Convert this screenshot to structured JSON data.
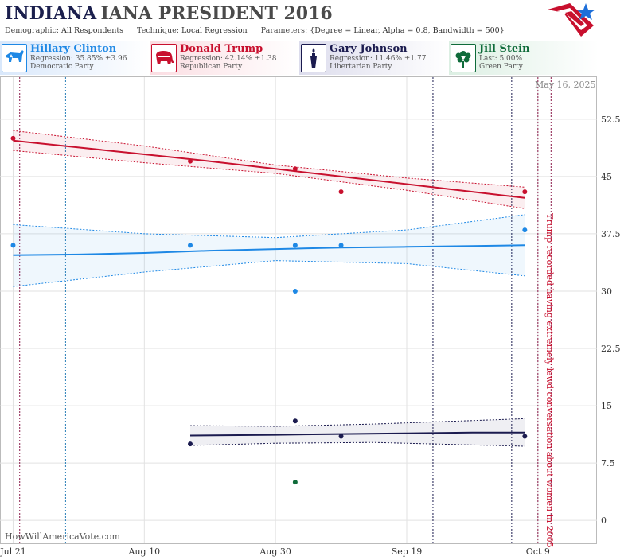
{
  "header": {
    "title_main": "INDIANA",
    "title_rest": "IANA PRESIDENT 2016",
    "demographic_label": "Demographic:",
    "demographic_value": "All Respondents",
    "technique_label": "Technique:",
    "technique_value": "Local Regression",
    "parameters_label": "Parameters:",
    "parameters_value": "{Degree = Linear, Alpha = 0.8, Bandwidth = 500}",
    "logo_icon": "star-flag-logo-icon"
  },
  "candidates": [
    {
      "name": "Hillary Clinton",
      "stat": "Regression: 35.85% ±3.96",
      "party": "Democratic Party",
      "color": "#1e88e5",
      "icon": "donkey-icon"
    },
    {
      "name": "Donald Trump",
      "stat": "Regression: 42.14% ±1.38",
      "party": "Republican Party",
      "color": "#c8102e",
      "icon": "elephant-icon"
    },
    {
      "name": "Gary Johnson",
      "stat": "Regression: 11.46% ±1.77",
      "party": "Libertarian Party",
      "color": "#1b1b4f",
      "icon": "torch-icon"
    },
    {
      "name": "Jill Stein",
      "stat": "Last: 5.00%",
      "party": "Green Party",
      "color": "#0f6b3a",
      "icon": "flower-icon"
    }
  ],
  "watermark": "HowWillAmericaVote.com",
  "date_stamp": "May 16, 2025",
  "chart_data": {
    "type": "scatter",
    "x_ticks": [
      "Jul 21",
      "Aug 10",
      "Aug 30",
      "Sep 19",
      "Oct 9"
    ],
    "x_tick_days": [
      0,
      20,
      40,
      60,
      80
    ],
    "y_ticks": [
      "0",
      "7.5",
      "15",
      "22.5",
      "30",
      "37.5",
      "45",
      "52.5"
    ],
    "y_tick_values": [
      0,
      7.5,
      15,
      22.5,
      30,
      37.5,
      45,
      52.5
    ],
    "xlim_days": [
      -2,
      89
    ],
    "ylim": [
      -3,
      58
    ],
    "series": [
      {
        "name": "Hillary Clinton",
        "color": "#1e88e5",
        "points": [
          [
            0,
            36
          ],
          [
            27,
            36
          ],
          [
            43,
            30
          ],
          [
            43,
            36
          ],
          [
            50,
            36
          ],
          [
            78,
            38
          ]
        ],
        "trend": [
          [
            0,
            34.7
          ],
          [
            10,
            34.8
          ],
          [
            20,
            35.0
          ],
          [
            30,
            35.3
          ],
          [
            40,
            35.5
          ],
          [
            50,
            35.7
          ],
          [
            60,
            35.8
          ],
          [
            70,
            35.9
          ],
          [
            78,
            36.0
          ]
        ],
        "band_upper": [
          [
            0,
            38.7
          ],
          [
            20,
            37.5
          ],
          [
            40,
            37.0
          ],
          [
            60,
            38.0
          ],
          [
            78,
            40.0
          ]
        ],
        "band_lower": [
          [
            0,
            30.6
          ],
          [
            20,
            32.5
          ],
          [
            40,
            34.0
          ],
          [
            60,
            33.6
          ],
          [
            78,
            32.0
          ]
        ]
      },
      {
        "name": "Donald Trump",
        "color": "#c8102e",
        "points": [
          [
            0,
            50
          ],
          [
            27,
            47
          ],
          [
            43,
            46
          ],
          [
            50,
            43
          ],
          [
            78,
            43
          ]
        ],
        "trend": [
          [
            0,
            49.7
          ],
          [
            10,
            48.8
          ],
          [
            20,
            47.9
          ],
          [
            30,
            47.0
          ],
          [
            40,
            46.0
          ],
          [
            50,
            45.0
          ],
          [
            60,
            44.0
          ],
          [
            70,
            43.0
          ],
          [
            78,
            42.2
          ]
        ],
        "band_upper": [
          [
            0,
            51.0
          ],
          [
            20,
            49.0
          ],
          [
            40,
            46.5
          ],
          [
            60,
            44.8
          ],
          [
            78,
            43.6
          ]
        ],
        "band_lower": [
          [
            0,
            48.4
          ],
          [
            20,
            46.8
          ],
          [
            40,
            45.4
          ],
          [
            60,
            43.2
          ],
          [
            78,
            40.8
          ]
        ]
      },
      {
        "name": "Gary Johnson",
        "color": "#1b1b4f",
        "points": [
          [
            27,
            10
          ],
          [
            43,
            13
          ],
          [
            50,
            11
          ],
          [
            78,
            11
          ]
        ],
        "trend": [
          [
            27,
            11.1
          ],
          [
            40,
            11.2
          ],
          [
            50,
            11.3
          ],
          [
            60,
            11.4
          ],
          [
            70,
            11.5
          ],
          [
            78,
            11.5
          ]
        ],
        "band_upper": [
          [
            27,
            12.4
          ],
          [
            40,
            12.3
          ],
          [
            55,
            12.6
          ],
          [
            78,
            13.3
          ]
        ],
        "band_lower": [
          [
            27,
            9.8
          ],
          [
            40,
            10.1
          ],
          [
            55,
            10.2
          ],
          [
            78,
            9.7
          ]
        ]
      },
      {
        "name": "Jill Stein",
        "color": "#0f6b3a",
        "points": [
          [
            43,
            5
          ]
        ],
        "trend": [],
        "band_upper": [],
        "band_lower": []
      }
    ],
    "vlines": [
      {
        "day": 1,
        "color": "#8b1a4a"
      },
      {
        "day": 8,
        "color": "#2a7fb8"
      },
      {
        "day": 64,
        "color": "#1b1b4f"
      },
      {
        "day": 76,
        "color": "#1b1b4f"
      },
      {
        "day": 80,
        "color": "#8b1a4a"
      },
      {
        "day": 82,
        "color": "#8b1a4a"
      }
    ],
    "annotation": {
      "text": "Trump recorded having extremely lewd conversation about women in 2005",
      "day": 81,
      "color": "#c8102e"
    },
    "grid": true
  }
}
